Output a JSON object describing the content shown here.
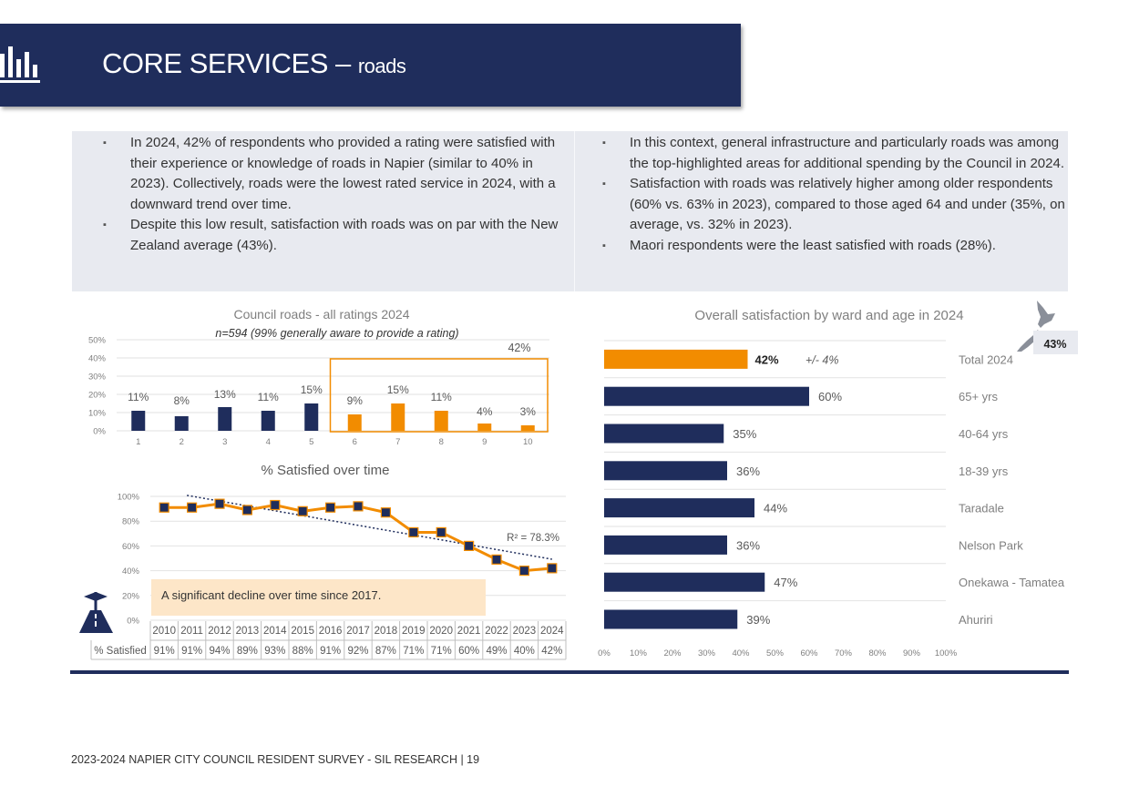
{
  "header": {
    "title": "CORE SERVICES",
    "dash": " – ",
    "subtitle": "roads"
  },
  "summary": {
    "left": [
      "In 2024, 42% of respondents who provided a rating were satisfied with their experience or knowledge of roads in Napier (similar to 40% in 2023). Collectively, roads were the lowest rated service in 2024, with a downward trend over time.",
      "Despite this low result, satisfaction with roads was on par with the New Zealand average (43%)."
    ],
    "right": [
      "In this context, general infrastructure and particularly roads was among the top-highlighted areas for additional spending by the Council in 2024.",
      "Satisfaction with roads was relatively higher among older respondents (60% vs. 63% in 2023), compared to those aged 64 and under (35%, on average, vs. 32% in 2023).",
      "Maori respondents were the least satisfied with roads (28%)."
    ]
  },
  "nz_badge": "43%",
  "annotation": "A significant decline over time since 2017.",
  "table_row_label": "% Satisfied",
  "footer": "2023-2024 NAPIER CITY COUNCIL RESIDENT SURVEY - SIL RESEARCH | 19",
  "colors": {
    "navy": "#1f2d5c",
    "orange": "#f28c00",
    "highlight": "#fde6c8"
  },
  "chart_data": [
    {
      "type": "bar",
      "title": "Council roads - all ratings 2024",
      "subtitle": "n=594 (99% generally aware to provide a rating)",
      "categories": [
        "1",
        "2",
        "3",
        "4",
        "5",
        "6",
        "7",
        "8",
        "9",
        "10"
      ],
      "values": [
        11,
        8,
        13,
        11,
        15,
        9,
        15,
        11,
        4,
        3
      ],
      "labels": [
        "11%",
        "8%",
        "13%",
        "11%",
        "15%",
        "9%",
        "15%",
        "11%",
        "4%",
        "3%"
      ],
      "highlight_categories": [
        "6",
        "7",
        "8",
        "9",
        "10"
      ],
      "highlight_label": "42%",
      "yticks": [
        "0%",
        "10%",
        "20%",
        "30%",
        "40%",
        "50%"
      ],
      "ylim": [
        0,
        50
      ]
    },
    {
      "type": "line",
      "title": "% Satisfied over time",
      "x": [
        "2010",
        "2011",
        "2012",
        "2013",
        "2014",
        "2015",
        "2016",
        "2017",
        "2018",
        "2019",
        "2020",
        "2021",
        "2022",
        "2023",
        "2024"
      ],
      "values": [
        91,
        91,
        94,
        89,
        93,
        88,
        91,
        92,
        87,
        71,
        71,
        60,
        49,
        40,
        42
      ],
      "labels": [
        "91%",
        "91%",
        "94%",
        "89%",
        "93%",
        "88%",
        "91%",
        "92%",
        "87%",
        "71%",
        "71%",
        "60%",
        "49%",
        "40%",
        "42%"
      ],
      "trendline": {
        "label": "R² = 78.3%"
      },
      "yticks": [
        "0%",
        "20%",
        "40%",
        "60%",
        "80%",
        "100%"
      ],
      "ylim": [
        0,
        100
      ]
    },
    {
      "type": "bar",
      "orientation": "horizontal",
      "title": "Overall satisfaction by ward and age in 2024",
      "categories": [
        "Total 2024",
        "65+ yrs",
        "40-64 yrs",
        "18-39 yrs",
        "Taradale",
        "Nelson Park",
        "Onekawa - Tamatea",
        "Ahuriri"
      ],
      "values": [
        42,
        60,
        35,
        36,
        44,
        36,
        47,
        39
      ],
      "labels": [
        "42%",
        "60%",
        "35%",
        "36%",
        "44%",
        "36%",
        "47%",
        "39%"
      ],
      "total_margin": "+/- 4%",
      "xticks": [
        "0%",
        "10%",
        "20%",
        "30%",
        "40%",
        "50%",
        "60%",
        "70%",
        "80%",
        "90%",
        "100%"
      ],
      "xlim": [
        0,
        100
      ]
    }
  ]
}
